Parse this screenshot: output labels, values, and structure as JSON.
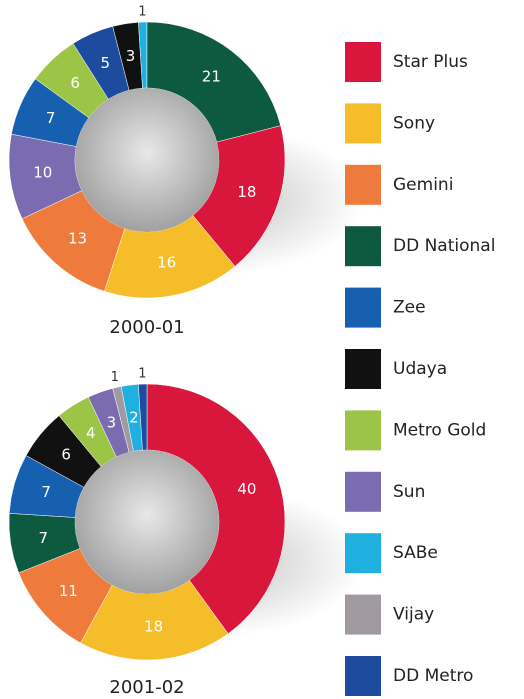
{
  "chart_data": [
    {
      "type": "pie",
      "title": "2000-01",
      "categories": [
        "SABe",
        "DD National",
        "Star Plus",
        "Sony",
        "Gemini",
        "Sun",
        "Zee",
        "Metro Gold",
        "DD Metro",
        "Udaya"
      ],
      "values": [
        1,
        21,
        18,
        16,
        13,
        10,
        7,
        6,
        5,
        3
      ]
    },
    {
      "type": "pie",
      "title": "2001-02",
      "categories": [
        "Star Plus",
        "Sony",
        "Gemini",
        "DD National",
        "Zee",
        "Udaya",
        "Metro Gold",
        "Sun",
        "Vijay",
        "SABe",
        "DD Metro"
      ],
      "values": [
        40,
        18,
        11,
        7,
        7,
        6,
        4,
        3,
        1,
        2,
        1
      ]
    }
  ],
  "legend": [
    {
      "name": "Star Plus",
      "color": "#d9163c"
    },
    {
      "name": "Sony",
      "color": "#f6bd2a"
    },
    {
      "name": "Gemini",
      "color": "#ee7a3c"
    },
    {
      "name": "DD National",
      "color": "#0e5a40"
    },
    {
      "name": "Zee",
      "color": "#1760b0"
    },
    {
      "name": "Udaya",
      "color": "#111111"
    },
    {
      "name": "Metro Gold",
      "color": "#9cc447"
    },
    {
      "name": "Sun",
      "color": "#7b6bb0"
    },
    {
      "name": "SABe",
      "color": "#1fb0e0"
    },
    {
      "name": "Vijay",
      "color": "#a09aa0"
    },
    {
      "name": "DD Metro",
      "color": "#1d4b9e"
    }
  ]
}
